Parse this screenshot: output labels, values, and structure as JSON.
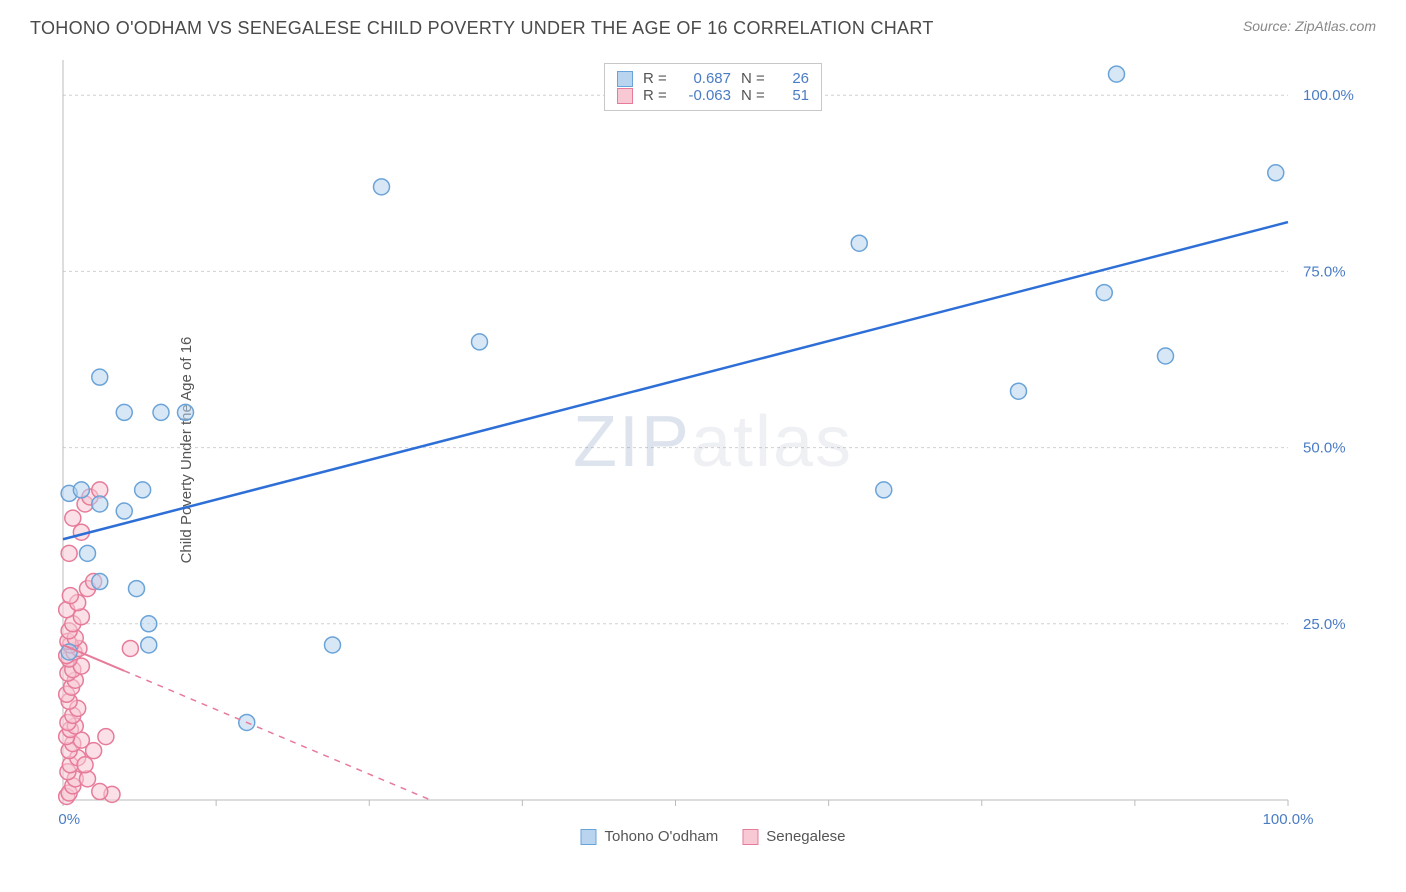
{
  "title": "TOHONO O'ODHAM VS SENEGALESE CHILD POVERTY UNDER THE AGE OF 16 CORRELATION CHART",
  "source": "Source: ZipAtlas.com",
  "y_axis_label": "Child Poverty Under the Age of 16",
  "watermark": "ZIPatlas",
  "chart": {
    "type": "scatter",
    "background_color": "#ffffff",
    "grid_color": "#d0d0d0",
    "axis_color": "#bbbbbb",
    "tick_label_color": "#4a7cc4",
    "xlim": [
      0,
      100
    ],
    "ylim": [
      0,
      105
    ],
    "x_ticks_major": [
      0,
      100
    ],
    "x_ticks_minor": [
      12.5,
      25,
      37.5,
      50,
      62.5,
      75,
      87.5
    ],
    "y_ticks": [
      25,
      50,
      75,
      100
    ],
    "x_tick_labels": {
      "0": "0.0%",
      "100": "100.0%"
    },
    "y_tick_labels": {
      "25": "25.0%",
      "50": "50.0%",
      "75": "75.0%",
      "100": "100.0%"
    },
    "marker_radius": 8,
    "marker_stroke_width": 1.5,
    "series": [
      {
        "name": "Tohono O'odham",
        "fill_color": "#b8d4ee",
        "stroke_color": "#6aa3d8",
        "fill_opacity": 0.55,
        "r_value": "0.687",
        "n_value": "26",
        "points": [
          [
            0.5,
            43.5
          ],
          [
            1.5,
            44
          ],
          [
            3,
            42
          ],
          [
            5,
            41
          ],
          [
            6.5,
            44
          ],
          [
            3,
            60
          ],
          [
            5,
            55
          ],
          [
            8,
            55
          ],
          [
            10,
            55
          ],
          [
            2,
            35
          ],
          [
            3,
            31
          ],
          [
            6,
            30
          ],
          [
            7,
            25
          ],
          [
            7,
            22
          ],
          [
            22,
            22
          ],
          [
            26,
            87
          ],
          [
            34,
            65
          ],
          [
            15,
            11
          ],
          [
            67,
            44
          ],
          [
            78,
            58
          ],
          [
            85,
            72
          ],
          [
            90,
            63
          ],
          [
            65,
            79
          ],
          [
            86,
            103
          ],
          [
            99,
            89
          ],
          [
            0.5,
            21
          ]
        ],
        "regression": {
          "x1": 0,
          "y1": 37,
          "x2": 100,
          "y2": 82,
          "solid_until_x": 100,
          "stroke": "#2d6fd6",
          "width": 2.5
        }
      },
      {
        "name": "Senegalese",
        "fill_color": "#f8c9d4",
        "stroke_color": "#e77b9a",
        "fill_opacity": 0.55,
        "r_value": "-0.063",
        "n_value": "51",
        "points": [
          [
            0.3,
            0.5
          ],
          [
            0.5,
            1
          ],
          [
            0.8,
            2
          ],
          [
            1,
            3
          ],
          [
            0.4,
            4
          ],
          [
            0.6,
            5
          ],
          [
            1.2,
            6
          ],
          [
            0.5,
            7
          ],
          [
            0.8,
            8
          ],
          [
            1.5,
            8.5
          ],
          [
            0.3,
            9
          ],
          [
            0.6,
            10
          ],
          [
            1,
            10.5
          ],
          [
            0.4,
            11
          ],
          [
            0.8,
            12
          ],
          [
            1.2,
            13
          ],
          [
            0.5,
            14
          ],
          [
            0.3,
            15
          ],
          [
            0.7,
            16
          ],
          [
            1,
            17
          ],
          [
            0.4,
            18
          ],
          [
            0.8,
            18.5
          ],
          [
            1.5,
            19
          ],
          [
            0.5,
            20
          ],
          [
            0.3,
            20.5
          ],
          [
            0.9,
            21
          ],
          [
            1.3,
            21.5
          ],
          [
            0.6,
            22
          ],
          [
            0.4,
            22.5
          ],
          [
            1,
            23
          ],
          [
            0.5,
            24
          ],
          [
            0.8,
            25
          ],
          [
            1.5,
            26
          ],
          [
            0.3,
            27
          ],
          [
            1.2,
            28
          ],
          [
            0.6,
            29
          ],
          [
            2,
            30
          ],
          [
            2.5,
            31
          ],
          [
            0.5,
            35
          ],
          [
            1.5,
            38
          ],
          [
            0.8,
            40
          ],
          [
            1.8,
            42
          ],
          [
            2.2,
            43
          ],
          [
            3,
            44
          ],
          [
            5.5,
            21.5
          ],
          [
            4,
            0.8
          ],
          [
            3,
            1.2
          ],
          [
            2,
            3
          ],
          [
            1.8,
            5
          ],
          [
            2.5,
            7
          ],
          [
            3.5,
            9
          ]
        ],
        "regression": {
          "x1": 0,
          "y1": 22,
          "x2": 30,
          "y2": 0,
          "solid_until_x": 5,
          "stroke": "#e77b9a",
          "width": 2
        }
      }
    ]
  },
  "legend_top": {
    "rows": [
      {
        "swatch_fill": "#b8d4ee",
        "swatch_stroke": "#6aa3d8",
        "r_label": "R =",
        "r_value": "0.687",
        "n_label": "N =",
        "n_value": "26"
      },
      {
        "swatch_fill": "#f8c9d4",
        "swatch_stroke": "#e77b9a",
        "r_label": "R =",
        "r_value": "-0.063",
        "n_label": "N =",
        "n_value": "51"
      }
    ]
  },
  "legend_bottom": {
    "items": [
      {
        "swatch_fill": "#b8d4ee",
        "swatch_stroke": "#6aa3d8",
        "label": "Tohono O'odham"
      },
      {
        "swatch_fill": "#f8c9d4",
        "swatch_stroke": "#e77b9a",
        "label": "Senegalese"
      }
    ]
  }
}
